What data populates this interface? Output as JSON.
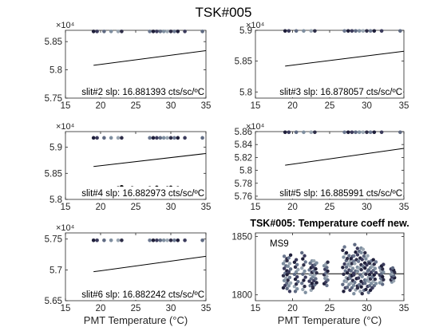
{
  "figure": {
    "title": "TSK#005"
  },
  "chart_data": [
    {
      "type": "scatter",
      "panel": "slit2",
      "exponent_label": "×10⁴",
      "xlim": [
        15,
        35
      ],
      "ylim": [
        5.75,
        5.87
      ],
      "xticks": [
        15,
        20,
        25,
        30,
        35
      ],
      "yticks": [
        5.75,
        5.8,
        5.85
      ],
      "ytick_labels": [
        "5.75",
        "5.8",
        "5.85"
      ],
      "annotation": "slit#2 slp: 16.881393 cts/sc/ºC",
      "xlabel": "",
      "ylabel": "",
      "points_x": [
        19,
        19.5,
        20.5,
        21.5,
        22.5,
        23,
        27,
        27.5,
        28,
        28.5,
        29,
        29.5,
        30,
        30.5,
        31,
        32,
        34.5
      ],
      "points_y": [
        5.868,
        5.868,
        5.868,
        5.868,
        5.868,
        5.868,
        5.868,
        5.868,
        5.868,
        5.868,
        5.868,
        5.868,
        5.868,
        5.868,
        5.868,
        5.868,
        5.868
      ],
      "fit_line": {
        "x": [
          19,
          35
        ],
        "y": [
          5.808,
          5.834
        ]
      }
    },
    {
      "type": "scatter",
      "panel": "slit3",
      "exponent_label": "×10⁴",
      "xlim": [
        15,
        35
      ],
      "ylim": [
        5.79,
        5.9
      ],
      "xticks": [
        15,
        20,
        25,
        30,
        35
      ],
      "yticks": [
        5.8,
        5.85,
        5.9
      ],
      "ytick_labels": [
        "5.8",
        "5.85",
        "5.9"
      ],
      "annotation": "slit#3 slp: 16.878057 cts/sc/ºC",
      "xlabel": "",
      "ylabel": "",
      "points_x": [
        19,
        19.5,
        20.5,
        21.5,
        22.5,
        23,
        27,
        27.5,
        28,
        28.5,
        29,
        29.5,
        30,
        30.5,
        31,
        32,
        34.5
      ],
      "points_y": [
        5.899,
        5.899,
        5.899,
        5.899,
        5.899,
        5.899,
        5.899,
        5.899,
        5.899,
        5.899,
        5.899,
        5.899,
        5.899,
        5.899,
        5.899,
        5.899,
        5.899
      ],
      "fit_line": {
        "x": [
          19,
          35
        ],
        "y": [
          5.842,
          5.866
        ]
      }
    },
    {
      "type": "scatter",
      "panel": "slit4",
      "exponent_label": "×10⁴",
      "xlim": [
        15,
        35
      ],
      "ylim": [
        5.8,
        5.93
      ],
      "xticks": [
        15,
        20,
        25,
        30,
        35
      ],
      "yticks": [
        5.8,
        5.85,
        5.9
      ],
      "ytick_labels": [
        "5.8",
        "5.85",
        "5.9"
      ],
      "annotation": "slit#4 slp: 16.882973 cts/sc/ºC",
      "xlabel": "",
      "ylabel": "",
      "points_x": [
        19,
        19.5,
        20.5,
        21.5,
        22.5,
        23,
        27,
        27.5,
        28,
        28.5,
        29,
        29.5,
        30,
        30.5,
        31,
        32,
        34.5,
        21.5,
        22.5,
        23,
        24.5,
        27,
        28,
        29.5,
        30,
        31
      ],
      "points_y": [
        5.918,
        5.918,
        5.918,
        5.918,
        5.918,
        5.918,
        5.918,
        5.918,
        5.918,
        5.918,
        5.918,
        5.918,
        5.918,
        5.918,
        5.918,
        5.918,
        5.918,
        5.82,
        5.822,
        5.824,
        5.822,
        5.822,
        5.823,
        5.822,
        5.823,
        5.822
      ],
      "fit_line": {
        "x": [
          19,
          35
        ],
        "y": [
          5.863,
          5.888
        ]
      }
    },
    {
      "type": "scatter",
      "panel": "slit5",
      "exponent_label": "×10⁴",
      "xlim": [
        15,
        35
      ],
      "ylim": [
        5.755,
        5.86
      ],
      "xticks": [
        15,
        20,
        25,
        30,
        35
      ],
      "yticks": [
        5.76,
        5.78,
        5.8,
        5.82,
        5.84,
        5.86
      ],
      "ytick_labels": [
        "5.76",
        "5.78",
        "5.8",
        "5.82",
        "5.84",
        "5.86"
      ],
      "annotation": "slit#5 slp: 16.885991 cts/sc/ºC",
      "xlabel": "",
      "ylabel": "",
      "points_x": [
        19,
        19.5,
        20.5,
        21.5,
        22.5,
        23,
        27,
        27.5,
        28,
        28.5,
        29,
        29.5,
        30,
        30.5,
        31,
        32,
        34.5
      ],
      "points_y": [
        5.859,
        5.859,
        5.859,
        5.859,
        5.859,
        5.859,
        5.859,
        5.859,
        5.859,
        5.859,
        5.859,
        5.859,
        5.859,
        5.859,
        5.859,
        5.859,
        5.859
      ],
      "fit_line": {
        "x": [
          19,
          35
        ],
        "y": [
          5.808,
          5.834
        ]
      }
    },
    {
      "type": "scatter",
      "panel": "slit6",
      "exponent_label": "×10⁴",
      "xlim": [
        15,
        35
      ],
      "ylim": [
        5.65,
        5.76
      ],
      "xticks": [
        15,
        20,
        25,
        30,
        35
      ],
      "yticks": [
        5.65,
        5.7,
        5.75
      ],
      "ytick_labels": [
        "5.65",
        "5.7",
        "5.75"
      ],
      "annotation": "slit#6 slp: 16.882242 cts/sc/ºC",
      "xlabel": "PMT Temperature (°C)",
      "ylabel": "",
      "points_x": [
        19,
        19.5,
        20.5,
        21.5,
        22.5,
        23,
        27,
        27.5,
        28,
        28.5,
        29,
        29.5,
        30,
        30.5,
        31,
        32,
        34.5
      ],
      "points_y": [
        5.748,
        5.748,
        5.748,
        5.748,
        5.748,
        5.748,
        5.748,
        5.748,
        5.748,
        5.748,
        5.748,
        5.748,
        5.748,
        5.748,
        5.748,
        5.748,
        5.748
      ],
      "fit_line": {
        "x": [
          19,
          35
        ],
        "y": [
          5.697,
          5.722
        ]
      }
    },
    {
      "type": "scatter",
      "panel": "coeff",
      "title": "TSK#005: Temperature coeff new.",
      "xlim": [
        15,
        35
      ],
      "ylim": [
        1795,
        1853
      ],
      "xticks": [
        15,
        20,
        25,
        30,
        35
      ],
      "yticks": [
        1800,
        1850
      ],
      "ytick_labels": [
        "1800",
        "1850"
      ],
      "annotation": "MS9",
      "xlabel": "PMT Temperature (°C)",
      "ylabel": "",
      "point_columns_x": [
        19,
        19.5,
        20.5,
        21.5,
        22.5,
        23,
        24.5,
        27,
        27.5,
        28,
        28.5,
        29,
        29.5,
        30,
        30.5,
        31,
        32,
        33.5
      ],
      "point_column_range": [
        [
          1806,
          1833
        ],
        [
          1803,
          1834
        ],
        [
          1803,
          1830
        ],
        [
          1802,
          1836
        ],
        [
          1804,
          1829
        ],
        [
          1807,
          1829
        ],
        [
          1808,
          1828
        ],
        [
          1803,
          1841
        ],
        [
          1804,
          1836
        ],
        [
          1806,
          1833
        ],
        [
          1801,
          1843
        ],
        [
          1803,
          1840
        ],
        [
          1801,
          1839
        ],
        [
          1802,
          1836
        ],
        [
          1804,
          1829
        ],
        [
          1806,
          1830
        ],
        [
          1809,
          1826
        ],
        [
          1811,
          1823
        ]
      ],
      "fit_line": {
        "x": [
          19,
          35
        ],
        "y": [
          1818,
          1818
        ]
      }
    }
  ]
}
